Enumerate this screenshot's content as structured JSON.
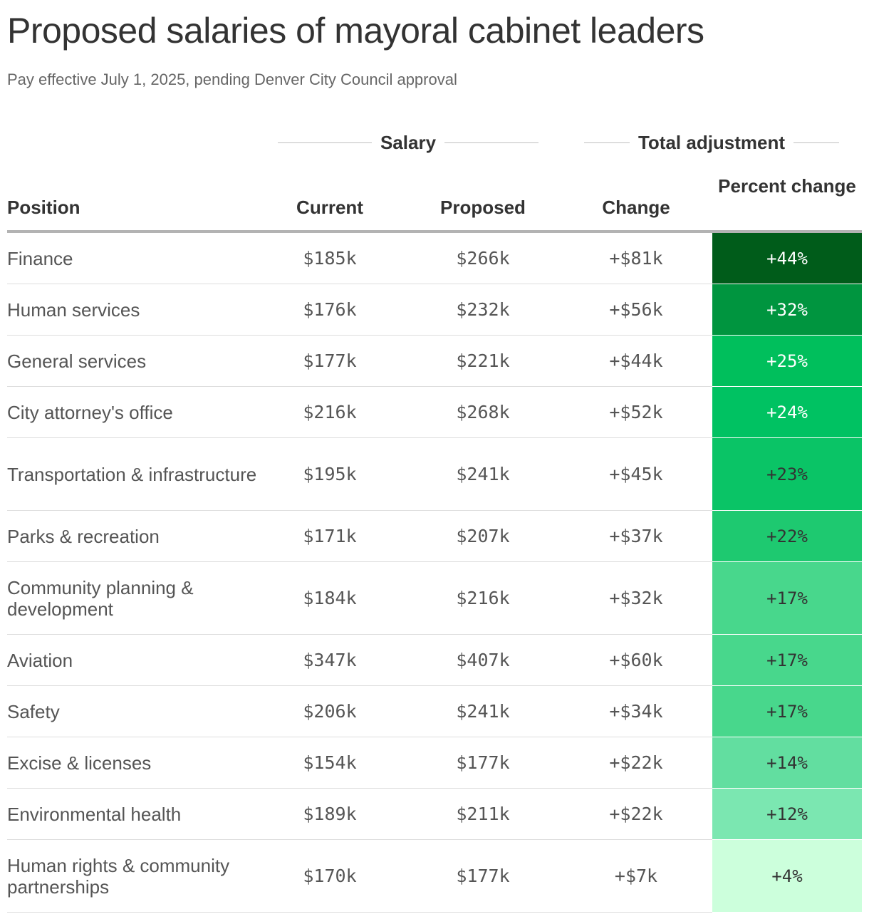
{
  "chart_data": {
    "type": "table",
    "title": "Proposed salaries of mayoral cabinet leaders",
    "subtitle": "Pay effective July 1, 2025, pending Denver City Council approval",
    "column_groups": {
      "salary": "Salary",
      "adjustment": "Total adjustment"
    },
    "columns": {
      "position": "Position",
      "current": "Current",
      "proposed": "Proposed",
      "change": "Change",
      "percent_change": "Percent change"
    },
    "rows": [
      {
        "position": "Finance",
        "current": "$185k",
        "proposed": "$266k",
        "change": "+$81k",
        "percent_change": "+44%",
        "pct_value": 44,
        "fill": "#005c1a",
        "text_color": "#ffffff",
        "tall": false
      },
      {
        "position": "Human services",
        "current": "$176k",
        "proposed": "$232k",
        "change": "+$56k",
        "percent_change": "+32%",
        "pct_value": 32,
        "fill": "#00953f",
        "text_color": "#ffffff",
        "tall": false
      },
      {
        "position": "General services",
        "current": "$177k",
        "proposed": "$221k",
        "change": "+$44k",
        "percent_change": "+25%",
        "pct_value": 25,
        "fill": "#00bf5c",
        "text_color": "#ffffff",
        "tall": false
      },
      {
        "position": "City attorney's office",
        "current": "$216k",
        "proposed": "$268k",
        "change": "+$52k",
        "percent_change": "+24%",
        "pct_value": 24,
        "fill": "#00c262",
        "text_color": "#ffffff",
        "tall": false
      },
      {
        "position": "Transportation & infrastructure",
        "current": "$195k",
        "proposed": "$241k",
        "change": "+$45k",
        "percent_change": "+23%",
        "pct_value": 23,
        "fill": "#0ac466",
        "text_color": "#333333",
        "tall": true
      },
      {
        "position": "Parks & recreation",
        "current": "$171k",
        "proposed": "$207k",
        "change": "+$37k",
        "percent_change": "+22%",
        "pct_value": 22,
        "fill": "#1ec970",
        "text_color": "#333333",
        "tall": false
      },
      {
        "position": "Community planning & development",
        "current": "$184k",
        "proposed": "$216k",
        "change": "+$32k",
        "percent_change": "+17%",
        "pct_value": 17,
        "fill": "#48d78c",
        "text_color": "#333333",
        "tall": true
      },
      {
        "position": "Aviation",
        "current": "$347k",
        "proposed": "$407k",
        "change": "+$60k",
        "percent_change": "+17%",
        "pct_value": 17,
        "fill": "#48d78c",
        "text_color": "#333333",
        "tall": false
      },
      {
        "position": "Safety",
        "current": "$206k",
        "proposed": "$241k",
        "change": "+$34k",
        "percent_change": "+17%",
        "pct_value": 17,
        "fill": "#48d78c",
        "text_color": "#333333",
        "tall": false
      },
      {
        "position": "Excise & licenses",
        "current": "$154k",
        "proposed": "$177k",
        "change": "+$22k",
        "percent_change": "+14%",
        "pct_value": 14,
        "fill": "#62dea0",
        "text_color": "#333333",
        "tall": false
      },
      {
        "position": "Environmental health",
        "current": "$189k",
        "proposed": "$211k",
        "change": "+$22k",
        "percent_change": "+12%",
        "pct_value": 12,
        "fill": "#7be7b1",
        "text_color": "#333333",
        "tall": false
      },
      {
        "position": "Human rights & community partnerships",
        "current": "$170k",
        "proposed": "$177k",
        "change": "+$7k",
        "percent_change": "+4%",
        "pct_value": 4,
        "fill": "#ccffdc",
        "text_color": "#333333",
        "tall": true
      }
    ]
  }
}
